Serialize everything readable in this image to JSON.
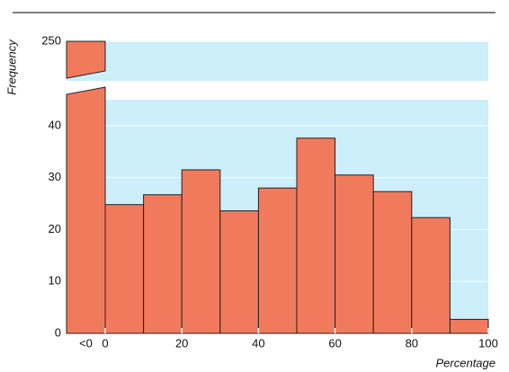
{
  "chart_data": {
    "type": "histogram",
    "x_label": "Percentage",
    "y_label": "Frequency",
    "bins": [
      0,
      10,
      20,
      30,
      40,
      50,
      60,
      70,
      80,
      90,
      100
    ],
    "counts": [
      24.8,
      26.7,
      31.5,
      23.6,
      28,
      37.6,
      30.5,
      27.3,
      22.3,
      2.7
    ],
    "underflow": {
      "label": "<0",
      "value": 250
    },
    "color": "#f27a5c",
    "panel_color": "#cdeefb",
    "xlim": [
      0,
      100
    ],
    "xticks": [
      0,
      20,
      40,
      60,
      80,
      100
    ],
    "ylim": [
      0,
      45
    ],
    "yticks": [
      0,
      10,
      20,
      30,
      40
    ],
    "break_ylim": [
      230,
      250
    ],
    "break_yticks": [
      250
    ],
    "grid": true
  }
}
